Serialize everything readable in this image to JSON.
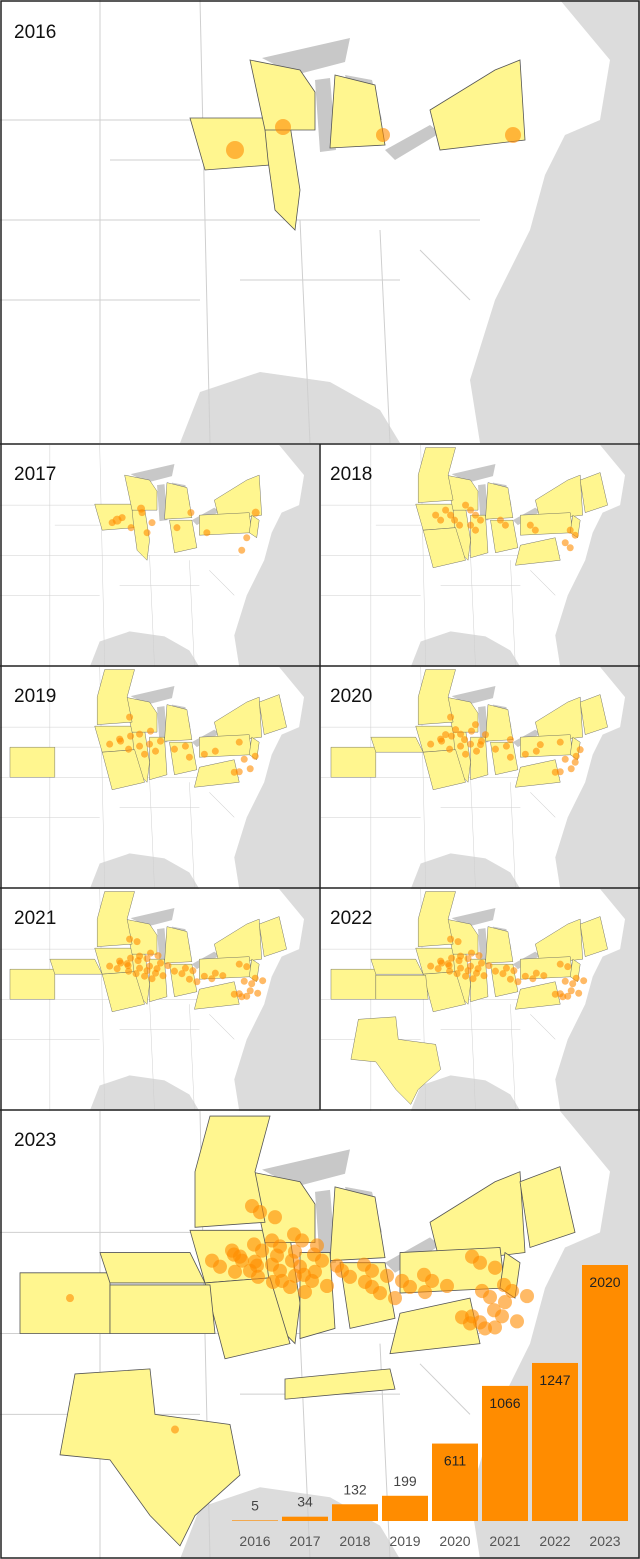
{
  "panel_labels": [
    "2016",
    "2017",
    "2018",
    "2019",
    "2020",
    "2021",
    "2022",
    "2023"
  ],
  "chart_data": {
    "type": "bar",
    "categories": [
      "2016",
      "2017",
      "2018",
      "2019",
      "2020",
      "2021",
      "2022",
      "2023"
    ],
    "values": [
      5,
      34,
      132,
      199,
      611,
      1066,
      1247,
      2020
    ],
    "color": "#ff8c00"
  }
}
